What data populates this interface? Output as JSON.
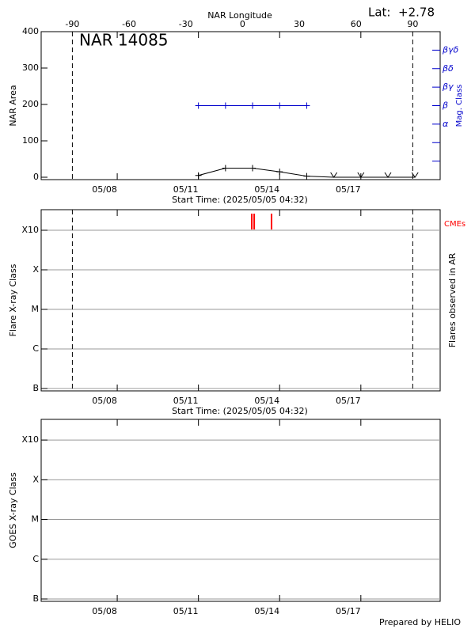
{
  "chart_data": [
    {
      "type": "line",
      "title": "NAR 14085",
      "annotation": "Lat:  +2.78",
      "x_label": "Start Time: (2025/05/05 04:32)",
      "y_label": "NAR Area",
      "x2_label": "NAR Longitude",
      "y2_label": "Mag. Class",
      "xlim": [
        5.19,
        19.93
      ],
      "xticks": [
        {
          "value": 8,
          "label": "05/08"
        },
        {
          "value": 11,
          "label": "05/11"
        },
        {
          "value": 14,
          "label": "05/14"
        },
        {
          "value": 17,
          "label": "05/17"
        }
      ],
      "ylim": [
        -6.5,
        400
      ],
      "yticks": [
        0,
        100,
        200,
        300,
        400
      ],
      "x2lim": [
        -106.5,
        104.5
      ],
      "x2ticks": [
        -90,
        -60,
        -30,
        0,
        30,
        60,
        90
      ],
      "y2lim": [
        -2,
        6
      ],
      "y2ticks": [
        {
          "value": -1,
          "label": null
        },
        {
          "value": 0,
          "label": null
        },
        {
          "value": 1,
          "label": "α"
        },
        {
          "value": 2,
          "label": "β"
        },
        {
          "value": 3,
          "label": "βγ"
        },
        {
          "value": 4,
          "label": "βδ"
        },
        {
          "value": 5,
          "label": "βγδ"
        }
      ],
      "series": [
        {
          "color": "#000000",
          "x": [
            11,
            12,
            13,
            14,
            15,
            16,
            17,
            18,
            19
          ],
          "values": [
            5,
            25,
            25,
            15,
            3,
            0,
            0,
            0,
            0
          ]
        },
        {
          "color": "#0000cc",
          "axis": "y2",
          "x": [
            11,
            12,
            13,
            14,
            15
          ],
          "values": [
            2,
            2,
            2,
            2,
            2
          ]
        }
      ]
    },
    {
      "type": "event",
      "x_label": "Start Time: (2025/05/05 04:32)",
      "y_label": "Flare X-ray Class",
      "y2_label": "Flares observed in AR",
      "xlim": [
        5.19,
        19.93
      ],
      "xticks": [
        {
          "value": 8,
          "label": "05/08"
        },
        {
          "value": 11,
          "label": "05/11"
        },
        {
          "value": 14,
          "label": "05/14"
        },
        {
          "value": 17,
          "label": "05/17"
        }
      ],
      "ylim": [
        -0.06,
        4.52
      ],
      "yticks": [
        {
          "value": 0,
          "label": "B"
        },
        {
          "value": 1,
          "label": "C"
        },
        {
          "value": 2,
          "label": "M"
        },
        {
          "value": 3,
          "label": "X"
        },
        {
          "value": 4,
          "label": "X10"
        }
      ],
      "grid": true,
      "series": [
        {
          "name": "CMEs",
          "color": "#ff0000",
          "x": [
            12.97,
            13.06,
            13.7
          ]
        }
      ]
    },
    {
      "type": "line",
      "y_label": "GOES X-ray Class",
      "xlim": [
        5.19,
        19.93
      ],
      "xticks": [
        {
          "value": 8,
          "label": "05/08"
        },
        {
          "value": 11,
          "label": "05/11"
        },
        {
          "value": 14,
          "label": "05/14"
        },
        {
          "value": 17,
          "label": "05/17"
        }
      ],
      "ylim": [
        -0.06,
        4.52
      ],
      "yticks": [
        {
          "value": 0,
          "label": "B"
        },
        {
          "value": 1,
          "label": "C"
        },
        {
          "value": 2,
          "label": "M"
        },
        {
          "value": 3,
          "label": "X"
        },
        {
          "value": 4,
          "label": "X10"
        }
      ],
      "grid": true,
      "series": []
    }
  ],
  "footer": "Prepared by HELIO"
}
